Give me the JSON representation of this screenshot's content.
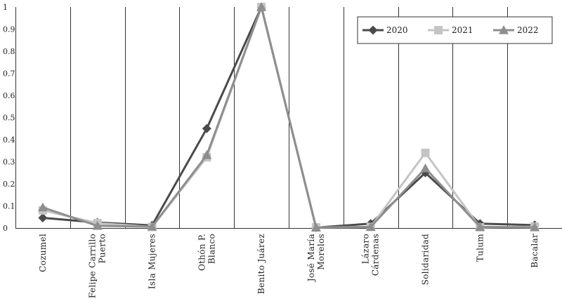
{
  "chart_data": {
    "type": "line",
    "title": "",
    "xlabel": "",
    "ylabel": "",
    "ylim": [
      0,
      1
    ],
    "yticks": [
      "0",
      "0.1",
      "0.2",
      "0.3",
      "0.4",
      "0.5",
      "0.6",
      "0.7",
      "0.8",
      "0.9",
      "1"
    ],
    "grid": "vertical",
    "legend_position": "top-right",
    "categories": [
      [
        "Cozumel"
      ],
      [
        "Felipe Carrillo",
        "Puerto"
      ],
      [
        "Isla Mujeres"
      ],
      [
        "Othón P.",
        "Blanco"
      ],
      [
        "Benito Juárez"
      ],
      [
        "José María",
        "Morelos"
      ],
      [
        "Lázaro",
        "Cárdenas"
      ],
      [
        "Solidaridad"
      ],
      [
        "Tulum"
      ],
      [
        "Bacalar"
      ]
    ],
    "series": [
      {
        "name": "2020",
        "color": "#4a4a4a",
        "marker": "diamond",
        "values": [
          0.046,
          0.025,
          0.012,
          0.45,
          1.0,
          0.002,
          0.02,
          0.25,
          0.02,
          0.013
        ]
      },
      {
        "name": "2021",
        "color": "#c4c4c4",
        "marker": "square",
        "values": [
          0.08,
          0.022,
          0.005,
          0.32,
          1.0,
          0.003,
          0.005,
          0.34,
          0.003,
          0.006
        ]
      },
      {
        "name": "2022",
        "color": "#8e8e8e",
        "marker": "triangle",
        "values": [
          0.093,
          0.01,
          0.006,
          0.33,
          1.0,
          0.002,
          0.005,
          0.27,
          0.005,
          0.003
        ]
      }
    ]
  }
}
